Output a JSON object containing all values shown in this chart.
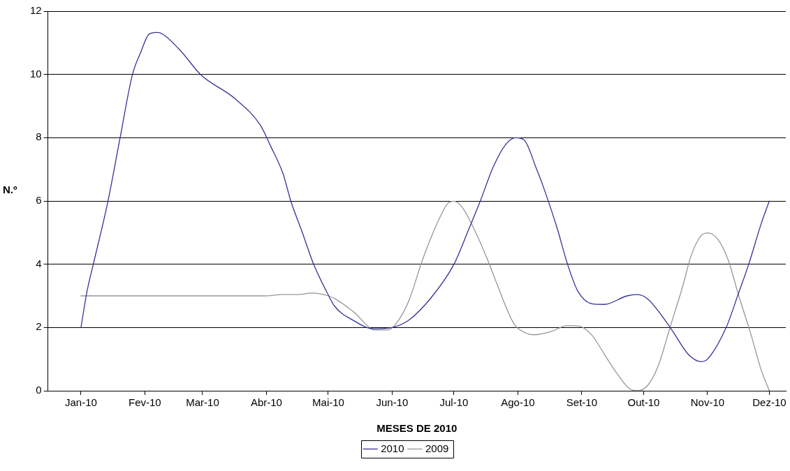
{
  "chart_data": {
    "type": "line",
    "xlabel": "MESES DE 2010",
    "ylabel": "N.º",
    "xlim": [
      "2009-12-16",
      "2010-12-09"
    ],
    "ylim": [
      0,
      12
    ],
    "yticks": [
      0,
      2,
      4,
      6,
      8,
      10,
      12
    ],
    "xticks": [
      {
        "value": "2010-01-01",
        "label": "Jan-10"
      },
      {
        "value": "2010-02-01",
        "label": "Fev-10"
      },
      {
        "value": "2010-03-01",
        "label": "Mar-10"
      },
      {
        "value": "2010-04-01",
        "label": "Abr-10"
      },
      {
        "value": "2010-05-01",
        "label": "Mai-10"
      },
      {
        "value": "2010-06-01",
        "label": "Jun-10"
      },
      {
        "value": "2010-07-01",
        "label": "Jul-10"
      },
      {
        "value": "2010-08-01",
        "label": "Ago-10"
      },
      {
        "value": "2010-09-01",
        "label": "Set-10"
      },
      {
        "value": "2010-10-01",
        "label": "Out-10"
      },
      {
        "value": "2010-11-01",
        "label": "Nov-10"
      },
      {
        "value": "2010-12-01",
        "label": "Dez-10"
      }
    ],
    "grid": "y",
    "legend": "bottom",
    "marker": "none",
    "line_style": "solid",
    "series": [
      {
        "name": "2010",
        "color": "#333399",
        "x": [
          "2010-01-01",
          "2010-01-04",
          "2010-01-07",
          "2010-01-14",
          "2010-01-20",
          "2010-01-26",
          "2010-01-30",
          "2010-02-03",
          "2010-02-07",
          "2010-02-10",
          "2010-02-19",
          "2010-02-28",
          "2010-03-17",
          "2010-03-29",
          "2010-04-03",
          "2010-04-09",
          "2010-04-13",
          "2010-04-18",
          "2010-04-24",
          "2010-04-30",
          "2010-05-04",
          "2010-05-13",
          "2010-05-23",
          "2010-05-31",
          "2010-06-09",
          "2010-06-20",
          "2010-07-01",
          "2010-07-08",
          "2010-07-14",
          "2010-07-20",
          "2010-07-26",
          "2010-07-31",
          "2010-08-04",
          "2010-08-10",
          "2010-08-13",
          "2010-08-20",
          "2010-08-25",
          "2010-08-30",
          "2010-09-06",
          "2010-09-12",
          "2010-09-23",
          "2010-09-28",
          "2010-10-03",
          "2010-10-14",
          "2010-10-23",
          "2010-10-29",
          "2010-11-01",
          "2010-11-10",
          "2010-11-16",
          "2010-11-21",
          "2010-11-27",
          "2010-12-01"
        ],
        "values": [
          2.0,
          3.16,
          4.0,
          5.96,
          8.0,
          10.0,
          10.7,
          11.27,
          11.33,
          11.26,
          10.7,
          10.0,
          9.22,
          8.4,
          7.74,
          6.87,
          5.96,
          5.08,
          3.98,
          3.16,
          2.68,
          2.23,
          1.96,
          1.99,
          2.23,
          2.95,
          4.0,
          5.08,
          6.04,
          7.07,
          7.78,
          8.0,
          7.93,
          7.02,
          6.51,
          5.15,
          4.02,
          3.16,
          2.75,
          2.73,
          3.0,
          3.04,
          2.9,
          1.99,
          1.13,
          0.92,
          1.0,
          1.99,
          3.07,
          4.0,
          5.27,
          6.0
        ]
      },
      {
        "name": "2009",
        "color": "#969696",
        "x": [
          "2010-01-01",
          "2010-03-31",
          "2010-04-09",
          "2010-04-16",
          "2010-04-23",
          "2010-05-01",
          "2010-05-04",
          "2010-05-13",
          "2010-05-24",
          "2010-05-30",
          "2010-06-03",
          "2010-06-09",
          "2010-06-16",
          "2010-06-24",
          "2010-06-28",
          "2010-07-01",
          "2010-07-05",
          "2010-07-11",
          "2010-07-17",
          "2010-07-21",
          "2010-07-30",
          "2010-08-05",
          "2010-08-09",
          "2010-08-17",
          "2010-08-25",
          "2010-08-31",
          "2010-09-06",
          "2010-09-12",
          "2010-09-17",
          "2010-09-24",
          "2010-09-28",
          "2010-10-03",
          "2010-10-08",
          "2010-10-14",
          "2010-10-20",
          "2010-10-24",
          "2010-10-29",
          "2010-11-01",
          "2010-11-06",
          "2010-11-11",
          "2010-11-16",
          "2010-11-22",
          "2010-11-27",
          "2010-12-01"
        ],
        "values": [
          3.0,
          3.0,
          3.04,
          3.04,
          3.09,
          3.0,
          2.92,
          2.51,
          1.92,
          1.92,
          2.13,
          2.83,
          4.19,
          5.46,
          5.92,
          5.99,
          5.8,
          5.08,
          4.19,
          3.52,
          2.13,
          1.82,
          1.77,
          1.87,
          2.06,
          2.04,
          1.75,
          1.15,
          0.65,
          0.07,
          0,
          0.17,
          0.77,
          2.04,
          3.31,
          4.26,
          4.91,
          4.99,
          4.79,
          4.14,
          3.04,
          1.8,
          0.67,
          0
        ]
      }
    ]
  }
}
